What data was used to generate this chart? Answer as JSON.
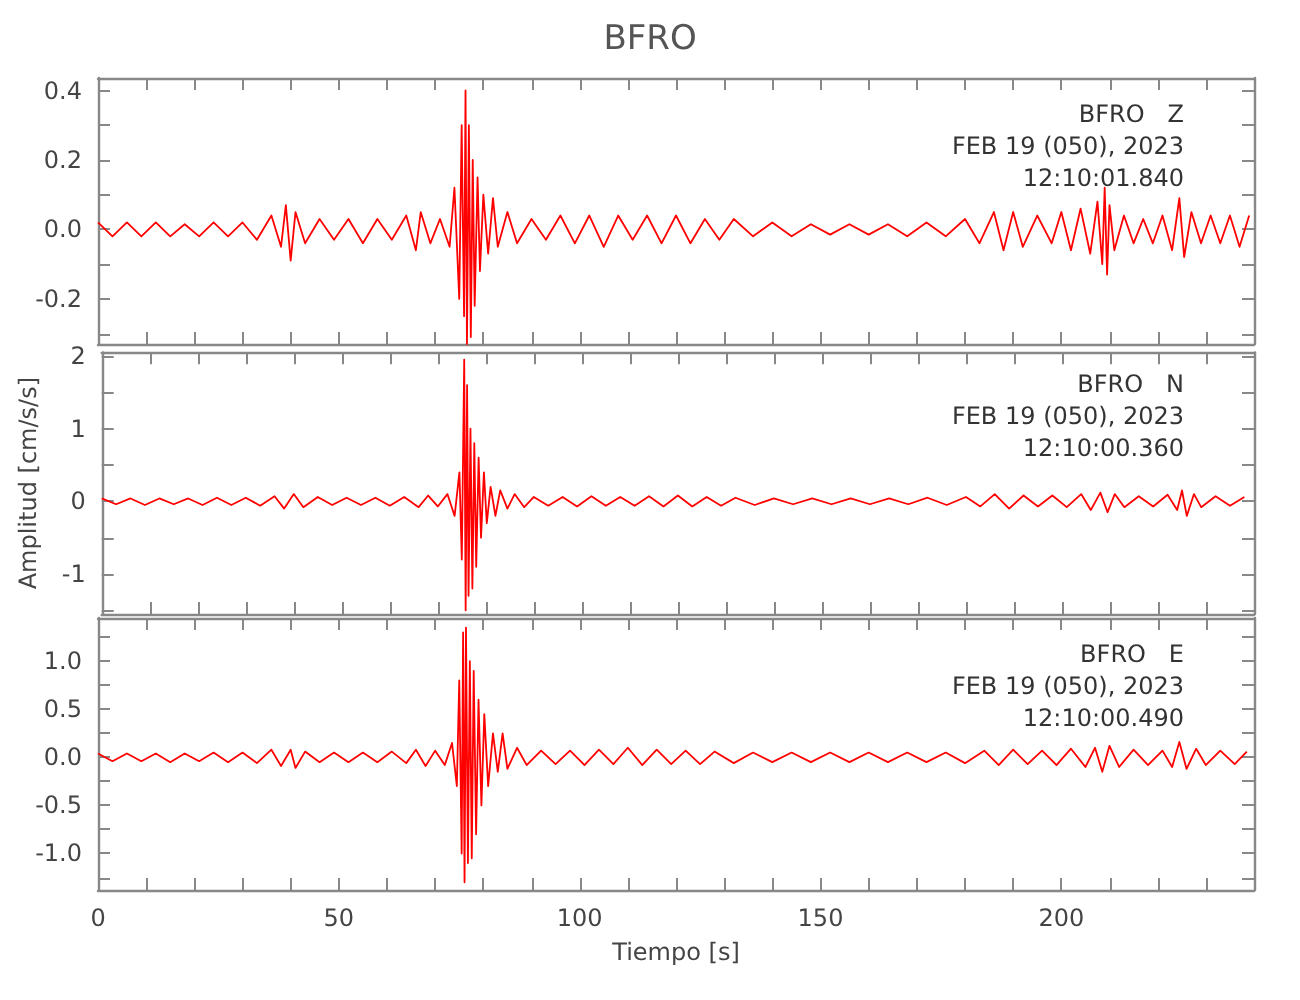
{
  "chart_data": [
    {
      "type": "line",
      "title": "BFRO",
      "annotations": [
        "BFRO   Z",
        "FEB 19 (050), 2023",
        "12:10:01.840"
      ],
      "tick_labels": "y",
      "marker": "none",
      "line_style": "solid",
      "xlim": [
        0,
        240
      ],
      "xticks": [
        0,
        {
          "value": 10,
          "label": null
        },
        {
          "value": 20,
          "label": null
        },
        {
          "value": 30,
          "label": null
        },
        {
          "value": 40,
          "label": null
        },
        50,
        {
          "value": 60,
          "label": null
        },
        {
          "value": 70,
          "label": null
        },
        {
          "value": 80,
          "label": null
        },
        {
          "value": 90,
          "label": null
        },
        100,
        {
          "value": 110,
          "label": null
        },
        {
          "value": 120,
          "label": null
        },
        {
          "value": 130,
          "label": null
        },
        {
          "value": 140,
          "label": null
        },
        150,
        {
          "value": 160,
          "label": null
        },
        {
          "value": 170,
          "label": null
        },
        {
          "value": 180,
          "label": null
        },
        {
          "value": 190,
          "label": null
        },
        200,
        {
          "value": 210,
          "label": null
        },
        {
          "value": 220,
          "label": null
        },
        {
          "value": 230,
          "label": null
        }
      ],
      "ylim": [
        -0.33,
        0.436
      ],
      "yticks": [
        {
          "value": -0.3,
          "label": null
        },
        {
          "value": -0.2,
          "label": "-0.2"
        },
        {
          "value": -0.1,
          "label": null
        },
        {
          "value": 0,
          "label": "0.0"
        },
        {
          "value": 0.1,
          "label": null
        },
        {
          "value": 0.2,
          "label": "0.2"
        },
        {
          "value": 0.3,
          "label": null
        },
        {
          "value": 0.4,
          "label": "0.4"
        }
      ],
      "series": [
        {
          "color": "#ff0000",
          "x": [
            0,
            3,
            6,
            9,
            12,
            15,
            18,
            21,
            24,
            27,
            30,
            33,
            36,
            38,
            39,
            40,
            41,
            43,
            46,
            49,
            52,
            55,
            58,
            61,
            64,
            66,
            67,
            69,
            71,
            73,
            74,
            75,
            75.5,
            76,
            76.3,
            76.6,
            77,
            77.4,
            77.8,
            78.2,
            78.8,
            79.3,
            80,
            81,
            82,
            83,
            85,
            87,
            90,
            93,
            96,
            99,
            102,
            105,
            108,
            111,
            114,
            117,
            120,
            123,
            126,
            129,
            132,
            136,
            140,
            144,
            148,
            152,
            156,
            160,
            164,
            168,
            172,
            176,
            180,
            183,
            186,
            188,
            190,
            192,
            195,
            198,
            200,
            202,
            204,
            206,
            207.5,
            208.5,
            209,
            209.5,
            210,
            211,
            213,
            215,
            217,
            219,
            221,
            223,
            224.5,
            225.5,
            227,
            229,
            231,
            233,
            235,
            237,
            239
          ],
          "values": [
            0.02,
            -0.02,
            0.02,
            -0.02,
            0.02,
            -0.02,
            0.015,
            -0.02,
            0.02,
            -0.02,
            0.02,
            -0.03,
            0.04,
            -0.05,
            0.07,
            -0.09,
            0.05,
            -0.04,
            0.03,
            -0.03,
            0.03,
            -0.04,
            0.03,
            -0.03,
            0.04,
            -0.06,
            0.05,
            -0.04,
            0.03,
            -0.05,
            0.12,
            -0.2,
            0.3,
            -0.25,
            0.4,
            -0.33,
            0.3,
            -0.31,
            0.2,
            -0.22,
            0.15,
            -0.12,
            0.1,
            -0.07,
            0.09,
            -0.05,
            0.05,
            -0.04,
            0.03,
            -0.03,
            0.04,
            -0.04,
            0.04,
            -0.05,
            0.04,
            -0.03,
            0.04,
            -0.04,
            0.04,
            -0.04,
            0.03,
            -0.03,
            0.03,
            -0.02,
            0.02,
            -0.02,
            0.015,
            -0.015,
            0.015,
            -0.015,
            0.015,
            -0.02,
            0.02,
            -0.02,
            0.03,
            -0.04,
            0.05,
            -0.06,
            0.05,
            -0.05,
            0.04,
            -0.04,
            0.05,
            -0.06,
            0.06,
            -0.07,
            0.08,
            -0.1,
            0.12,
            -0.13,
            0.07,
            -0.06,
            0.04,
            -0.04,
            0.03,
            -0.04,
            0.04,
            -0.06,
            0.09,
            -0.08,
            0.05,
            -0.04,
            0.04,
            -0.04,
            0.04,
            -0.05,
            0.04
          ]
        }
      ]
    },
    {
      "type": "line",
      "ylabel": "Amplitud [cm/s/s]",
      "annotations": [
        "BFRO   N",
        "FEB 19 (050), 2023",
        "12:10:00.360"
      ],
      "tick_labels": "y",
      "marker": "none",
      "line_style": "solid",
      "xlim": [
        0,
        240
      ],
      "xticks": [
        0,
        {
          "value": 10,
          "label": null
        },
        {
          "value": 20,
          "label": null
        },
        {
          "value": 30,
          "label": null
        },
        {
          "value": 40,
          "label": null
        },
        50,
        {
          "value": 60,
          "label": null
        },
        {
          "value": 70,
          "label": null
        },
        {
          "value": 80,
          "label": null
        },
        {
          "value": 90,
          "label": null
        },
        100,
        {
          "value": 110,
          "label": null
        },
        {
          "value": 120,
          "label": null
        },
        {
          "value": 130,
          "label": null
        },
        {
          "value": 140,
          "label": null
        },
        150,
        {
          "value": 160,
          "label": null
        },
        {
          "value": 170,
          "label": null
        },
        {
          "value": 180,
          "label": null
        },
        {
          "value": 190,
          "label": null
        },
        200,
        {
          "value": 210,
          "label": null
        },
        {
          "value": 220,
          "label": null
        },
        {
          "value": 230,
          "label": null
        }
      ],
      "ylim": [
        -1.55,
        2.05
      ],
      "yticks": [
        {
          "value": -1.5,
          "label": null
        },
        -1,
        {
          "value": -0.5,
          "label": null
        },
        0,
        {
          "value": 0.5,
          "label": null
        },
        1,
        {
          "value": 1.5,
          "label": null
        },
        2
      ],
      "series": [
        {
          "color": "#ff0000",
          "x": [
            0,
            3,
            6,
            9,
            12,
            15,
            18,
            21,
            24,
            27,
            30,
            33,
            36,
            38,
            40,
            42,
            45,
            48,
            51,
            54,
            57,
            60,
            63,
            66,
            68,
            70,
            72,
            73.5,
            74.5,
            75,
            75.5,
            75.8,
            76.1,
            76.4,
            76.8,
            77.2,
            77.6,
            78,
            78.5,
            79,
            79.6,
            80.2,
            81,
            82,
            83,
            84.5,
            86,
            88,
            90,
            93,
            96,
            99,
            102,
            105,
            108,
            111,
            114,
            117,
            120,
            123,
            126,
            129,
            132,
            136,
            140,
            144,
            148,
            152,
            156,
            160,
            164,
            168,
            172,
            176,
            180,
            183,
            186,
            189,
            192,
            195,
            198,
            201,
            204,
            206,
            208,
            209.5,
            211,
            213,
            216,
            219,
            222,
            224,
            225,
            226,
            227.5,
            229,
            232,
            235,
            238
          ],
          "values": [
            0.04,
            -0.04,
            0.04,
            -0.05,
            0.04,
            -0.04,
            0.04,
            -0.05,
            0.05,
            -0.05,
            0.05,
            -0.06,
            0.07,
            -0.1,
            0.1,
            -0.08,
            0.06,
            -0.05,
            0.05,
            -0.05,
            0.05,
            -0.06,
            0.06,
            -0.08,
            0.08,
            -0.07,
            0.1,
            -0.2,
            0.4,
            -0.8,
            1.95,
            -1.5,
            1.6,
            -1.3,
            1,
            -1.2,
            0.8,
            -0.9,
            0.6,
            -0.5,
            0.4,
            -0.3,
            0.2,
            -0.2,
            0.15,
            -0.1,
            0.1,
            -0.08,
            0.06,
            -0.06,
            0.06,
            -0.07,
            0.07,
            -0.06,
            0.06,
            -0.06,
            0.07,
            -0.07,
            0.08,
            -0.07,
            0.06,
            -0.06,
            0.05,
            -0.05,
            0.04,
            -0.04,
            0.04,
            -0.04,
            0.04,
            -0.04,
            0.04,
            -0.04,
            0.05,
            -0.05,
            0.06,
            -0.07,
            0.1,
            -0.1,
            0.08,
            -0.07,
            0.08,
            -0.08,
            0.1,
            -0.12,
            0.12,
            -0.15,
            0.1,
            -0.08,
            0.07,
            -0.07,
            0.09,
            -0.12,
            0.15,
            -0.2,
            0.1,
            -0.08,
            0.07,
            -0.06,
            0.06
          ]
        }
      ]
    },
    {
      "type": "line",
      "xlabel": "Tiempo [s]",
      "annotations": [
        "BFRO   E",
        "FEB 19 (050), 2023",
        "12:10:00.490"
      ],
      "marker": "none",
      "line_style": "solid",
      "xlim": [
        0,
        240
      ],
      "xticks": [
        0,
        {
          "value": 10,
          "label": null
        },
        {
          "value": 20,
          "label": null
        },
        {
          "value": 30,
          "label": null
        },
        {
          "value": 40,
          "label": null
        },
        50,
        {
          "value": 60,
          "label": null
        },
        {
          "value": 70,
          "label": null
        },
        {
          "value": 80,
          "label": null
        },
        {
          "value": 90,
          "label": null
        },
        100,
        {
          "value": 110,
          "label": null
        },
        {
          "value": 120,
          "label": null
        },
        {
          "value": 130,
          "label": null
        },
        {
          "value": 140,
          "label": null
        },
        150,
        {
          "value": 160,
          "label": null
        },
        {
          "value": 170,
          "label": null
        },
        {
          "value": 180,
          "label": null
        },
        {
          "value": 190,
          "label": null
        },
        200,
        {
          "value": 210,
          "label": null
        },
        {
          "value": 220,
          "label": null
        },
        {
          "value": 230,
          "label": null
        }
      ],
      "ylim": [
        -1.38,
        1.45
      ],
      "yticks": [
        {
          "value": -1.25,
          "label": null
        },
        {
          "value": -1,
          "label": "-1.0"
        },
        {
          "value": -0.75,
          "label": null
        },
        {
          "value": -0.5,
          "label": "-0.5"
        },
        {
          "value": -0.25,
          "label": null
        },
        {
          "value": 0,
          "label": "0.0"
        },
        {
          "value": 0.25,
          "label": null
        },
        {
          "value": 0.5,
          "label": "0.5"
        },
        {
          "value": 0.75,
          "label": null
        },
        {
          "value": 1,
          "label": "1.0"
        },
        {
          "value": 1.25,
          "label": null
        }
      ],
      "series": [
        {
          "color": "#ff0000",
          "x": [
            0,
            3,
            6,
            9,
            12,
            15,
            18,
            21,
            24,
            27,
            30,
            33,
            36,
            38,
            40,
            41,
            43,
            46,
            49,
            52,
            55,
            58,
            61,
            64,
            66,
            68,
            70,
            72,
            73.5,
            74.5,
            75,
            75.5,
            75.8,
            76.1,
            76.4,
            76.8,
            77.2,
            77.6,
            78,
            78.5,
            79,
            79.6,
            80.2,
            81,
            82,
            83,
            84,
            85,
            87,
            89,
            92,
            95,
            98,
            101,
            104,
            107,
            110,
            113,
            116,
            119,
            122,
            125,
            128,
            132,
            136,
            140,
            144,
            148,
            152,
            156,
            160,
            164,
            168,
            172,
            176,
            180,
            184,
            187,
            190,
            193,
            196,
            199,
            202,
            205,
            207,
            208.5,
            210,
            212,
            215,
            218,
            221,
            223,
            224.5,
            226,
            228,
            230,
            233,
            236,
            238.5
          ],
          "values": [
            0.04,
            -0.04,
            0.04,
            -0.04,
            0.04,
            -0.05,
            0.04,
            -0.04,
            0.05,
            -0.05,
            0.05,
            -0.06,
            0.08,
            -0.09,
            0.08,
            -0.11,
            0.06,
            -0.05,
            0.05,
            -0.05,
            0.05,
            -0.05,
            0.06,
            -0.06,
            0.08,
            -0.09,
            0.07,
            -0.08,
            0.15,
            -0.3,
            0.8,
            -1,
            1.3,
            -1.3,
            1.35,
            -1.1,
            1,
            -1.05,
            0.9,
            -0.8,
            0.6,
            -0.5,
            0.45,
            -0.3,
            0.25,
            -0.15,
            0.25,
            -0.12,
            0.1,
            -0.08,
            0.07,
            -0.07,
            0.07,
            -0.08,
            0.08,
            -0.07,
            0.1,
            -0.08,
            0.08,
            -0.07,
            0.07,
            -0.07,
            0.06,
            -0.06,
            0.05,
            -0.05,
            0.05,
            -0.05,
            0.05,
            -0.05,
            0.05,
            -0.05,
            0.05,
            -0.05,
            0.05,
            -0.06,
            0.07,
            -0.08,
            0.08,
            -0.07,
            0.07,
            -0.08,
            0.09,
            -0.1,
            0.1,
            -0.15,
            0.12,
            -0.1,
            0.08,
            -0.08,
            0.07,
            -0.1,
            0.16,
            -0.12,
            0.09,
            -0.08,
            0.07,
            -0.07,
            0.06
          ]
        }
      ]
    }
  ]
}
